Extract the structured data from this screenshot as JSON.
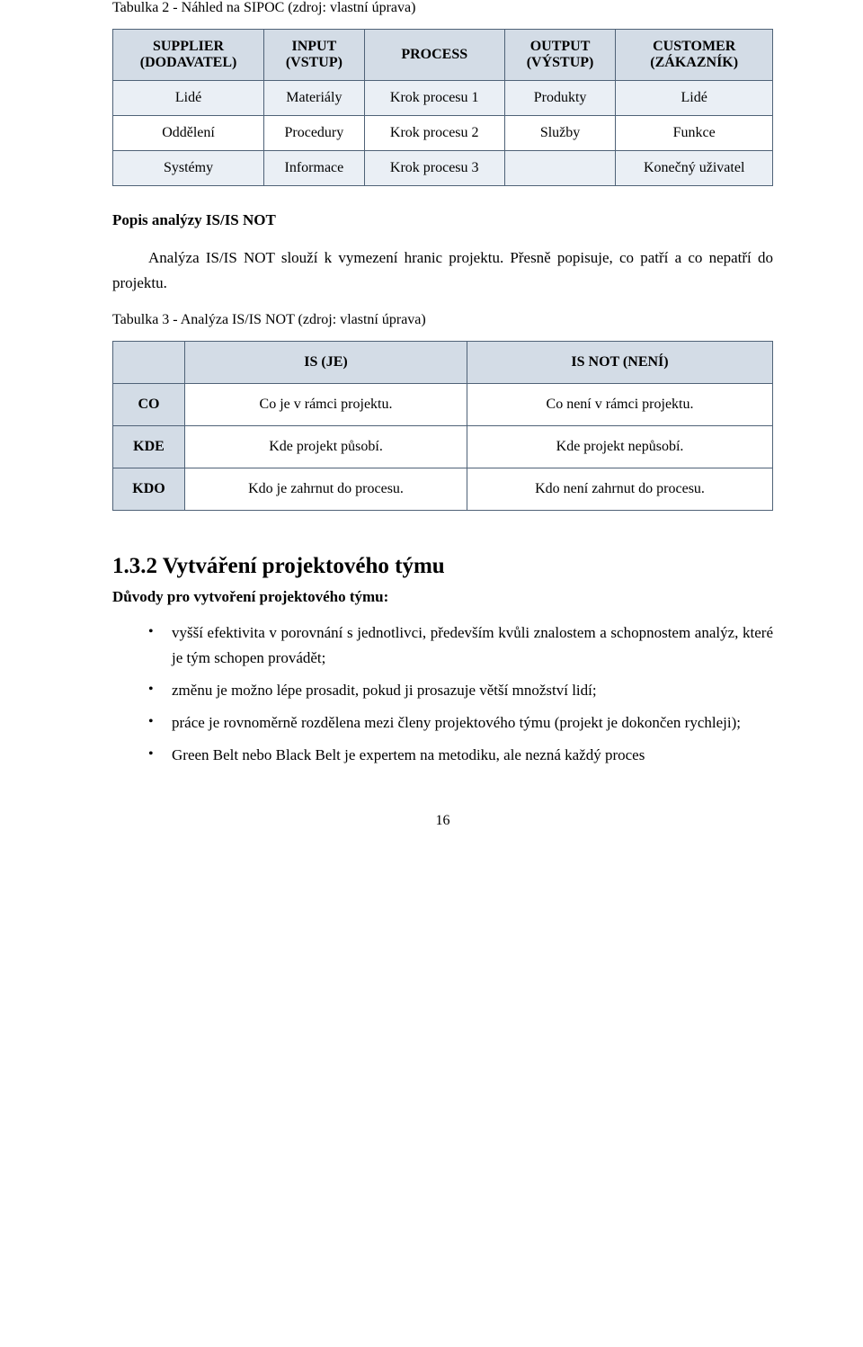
{
  "caption1": "Tabulka 2 - Náhled na SIPOC (zdroj: vlastní úprava)",
  "table1": {
    "header_bg": "#d3dce6",
    "border_color": "#4f6277",
    "columns": [
      {
        "main": "SUPPLIER",
        "sub": "(DODAVATEL)"
      },
      {
        "main": "INPUT",
        "sub": "(VSTUP)"
      },
      {
        "main": "PROCESS",
        "sub": ""
      },
      {
        "main": "OUTPUT",
        "sub": "(VÝSTUP)"
      },
      {
        "main": "CUSTOMER",
        "sub": "(ZÁKAZNÍK)"
      }
    ],
    "rows": [
      [
        "Lidé",
        "Materiály",
        "Krok procesu 1",
        "Produkty",
        "Lidé"
      ],
      [
        "Oddělení",
        "Procedury",
        "Krok procesu 2",
        "Služby",
        "Funkce"
      ],
      [
        "Systémy",
        "Informace",
        "Krok procesu 3",
        "",
        "Konečný uživatel"
      ]
    ]
  },
  "h_isisnot": "Popis analýzy IS/IS NOT",
  "p_isisnot": "Analýza IS/IS NOT slouží k vymezení hranic projektu. Přesně popisuje, co patří a co nepatří do projektu.",
  "caption2": "Tabulka 3 - Analýza IS/IS NOT (zdroj: vlastní úprava)",
  "table2": {
    "columns": [
      "IS (JE)",
      "IS NOT (NENÍ)"
    ],
    "rows": [
      {
        "label": "CO",
        "c1": "Co je v rámci projektu.",
        "c2": "Co není v rámci projektu."
      },
      {
        "label": "KDE",
        "c1": "Kde projekt působí.",
        "c2": "Kde projekt nepůsobí."
      },
      {
        "label": "KDO",
        "c1": "Kdo je zahrnut do procesu.",
        "c2": "Kdo není zahrnut do procesu."
      }
    ]
  },
  "section_num_title": "1.3.2 Vytváření projektového týmu",
  "reasons_title": "Důvody pro vytvoření projektového týmu:",
  "bullets": [
    "vyšší efektivita v porovnání s jednotlivci, především kvůli znalostem a schopnostem analýz, které je tým schopen provádět;",
    "změnu je možno lépe prosadit, pokud ji prosazuje větší množství lidí;",
    "práce je rovnoměrně rozdělena mezi členy projektového týmu (projekt je dokončen rychleji);",
    "Green Belt nebo Black Belt je expertem na metodiku, ale nezná každý proces"
  ],
  "page_number": "16"
}
